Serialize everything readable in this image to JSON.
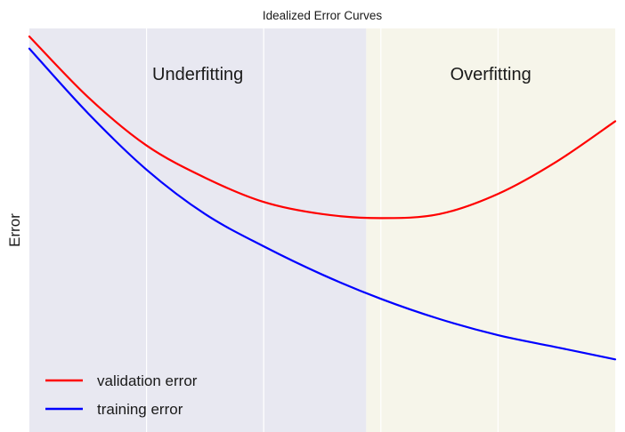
{
  "chart_data": {
    "type": "line",
    "title": "Idealized Error Curves",
    "xlabel": "",
    "ylabel": "Error",
    "xlim": [
      0,
      10
    ],
    "ylim": [
      0,
      10
    ],
    "grid": true,
    "x_gridlines": [
      2,
      4,
      6,
      8
    ],
    "legend": "lower-left",
    "regions": [
      {
        "label": "Underfitting",
        "x_range": [
          0,
          5.75
        ],
        "color": "#E8E8F1"
      },
      {
        "label": "Overfitting",
        "x_range": [
          5.75,
          10
        ],
        "color": "#F6F5EA"
      }
    ],
    "series": [
      {
        "name": "validation error",
        "color": "#FF0000",
        "x": [
          0,
          1,
          2,
          3,
          4,
          5,
          6,
          7,
          8,
          9,
          10
        ],
        "y": [
          9.8,
          8.3,
          7.1,
          6.3,
          5.7,
          5.4,
          5.3,
          5.4,
          5.9,
          6.7,
          7.7
        ]
      },
      {
        "name": "training error",
        "color": "#0000FF",
        "x": [
          0,
          1,
          2,
          3,
          4,
          5,
          6,
          7,
          8,
          9,
          10
        ],
        "y": [
          9.5,
          7.9,
          6.5,
          5.4,
          4.6,
          3.9,
          3.3,
          2.8,
          2.4,
          2.1,
          1.8
        ]
      }
    ]
  }
}
